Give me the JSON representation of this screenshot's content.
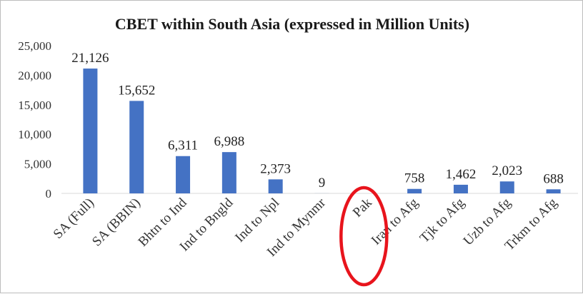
{
  "chart_data": {
    "type": "bar",
    "title": "CBET within South Asia (expressed in Million Units)",
    "categories": [
      "SA (Full)",
      "SA (BBIN)",
      "Bhtn to Ind",
      "Ind to Bngld",
      "Ind to Npl",
      "Ind to Mynmr",
      "Pak",
      "Iran to Afg",
      "Tjk to Afg",
      "Uzb to Afg",
      "Trkm to Afg"
    ],
    "values": [
      21126,
      15652,
      6311,
      6988,
      2373,
      9,
      null,
      758,
      1462,
      2023,
      688
    ],
    "data_labels": [
      "21,126",
      "15,652",
      "6,311",
      "6,988",
      "2,373",
      "9",
      "",
      "758",
      "1,462",
      "2,023",
      "688"
    ],
    "ylim": [
      0,
      25000
    ],
    "yticks": [
      0,
      5000,
      10000,
      15000,
      20000,
      25000
    ],
    "ytick_labels": [
      "0",
      "5,000",
      "10,000",
      "15,000",
      "20,000",
      "25,000"
    ],
    "xlabel": "",
    "ylabel": "",
    "grid": false,
    "legend": "none",
    "bar_color": "#4472C4",
    "highlight": {
      "category": "Pak",
      "shape": "ellipse",
      "color": "#E8141C"
    }
  }
}
